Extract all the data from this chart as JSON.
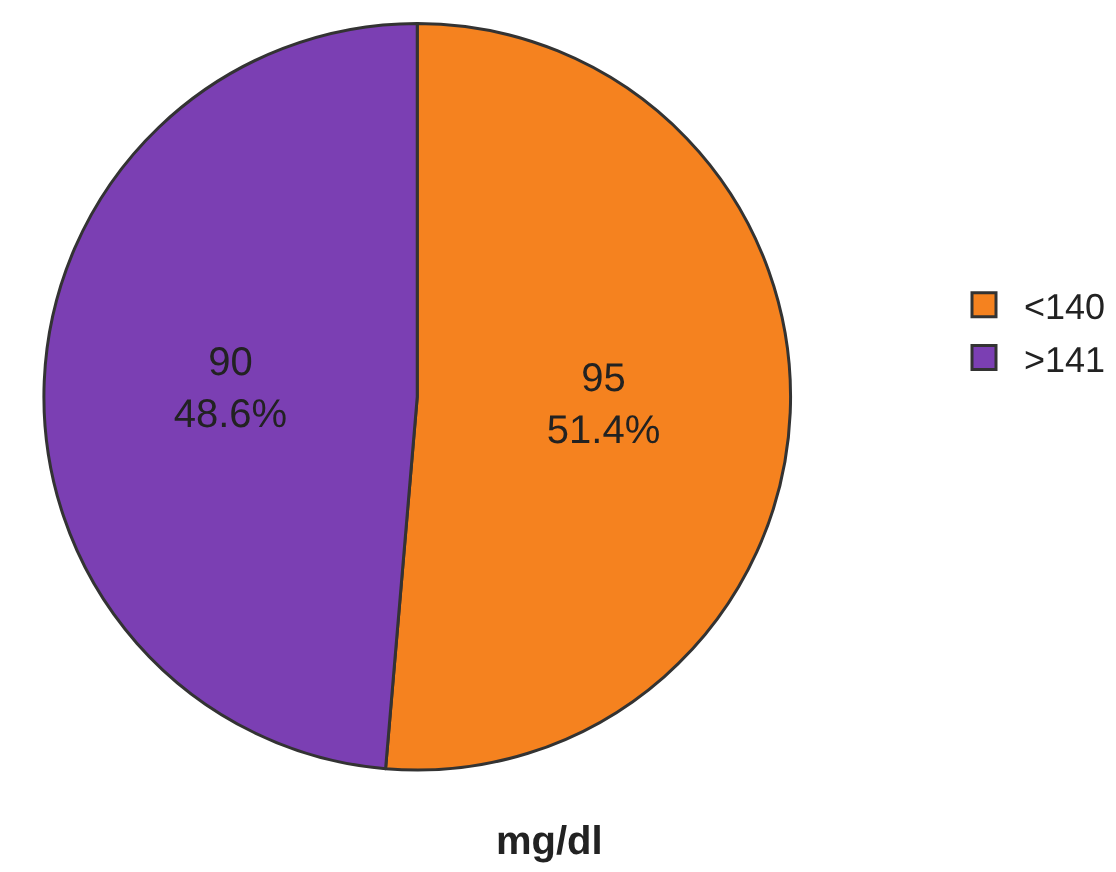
{
  "chart_data": {
    "type": "pie",
    "title": "mg/dl",
    "categories": [
      "<140",
      ">141"
    ],
    "values": [
      95,
      90
    ],
    "colors": [
      "#f5821f",
      "#7b3fb3"
    ],
    "value_labels": [
      "95\n51.4%",
      "90\n48.6%"
    ],
    "legend": "right"
  }
}
